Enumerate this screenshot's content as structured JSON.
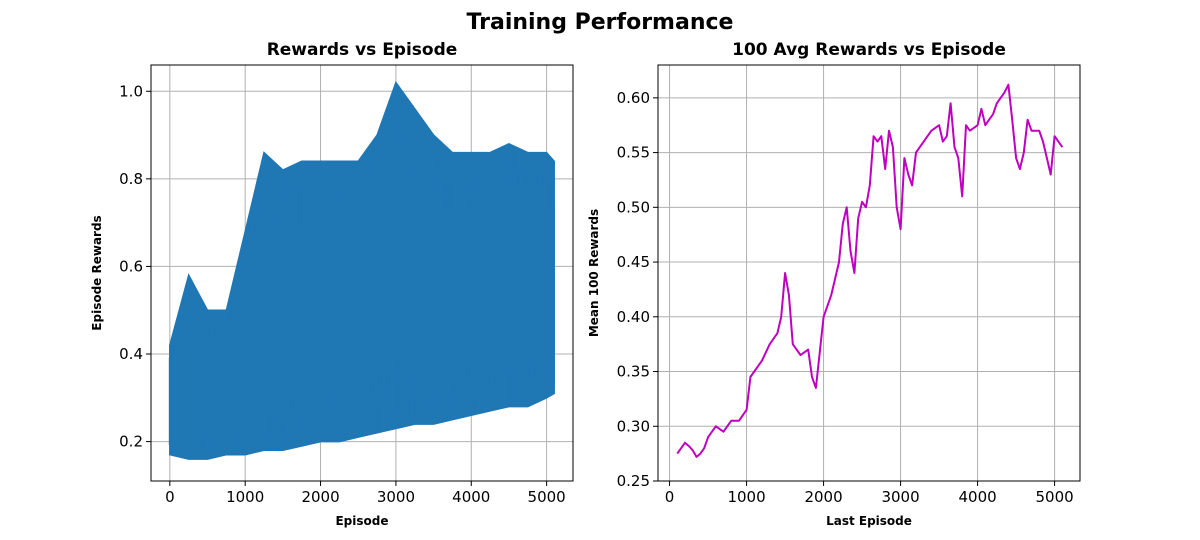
{
  "suptitle": "Training Performance",
  "chart_data": [
    {
      "type": "line",
      "title": "Rewards vs Episode",
      "xlabel": "Episode",
      "ylabel": "Episode Rewards",
      "xlim": [
        -250,
        5350
      ],
      "ylim": [
        0.11,
        1.06
      ],
      "xticks": [
        0,
        1000,
        2000,
        3000,
        4000,
        5000
      ],
      "yticks": [
        0.2,
        0.4,
        0.6,
        0.8,
        1.0
      ],
      "xtick_labels": [
        "0",
        "1000",
        "2000",
        "3000",
        "4000",
        "5000"
      ],
      "ytick_labels": [
        "0.2",
        "0.4",
        "0.6",
        "0.8",
        "1.0"
      ],
      "grid": true,
      "color": "#1f77b4",
      "series": [
        {
          "x": [
            0,
            250,
            500,
            750,
            1000,
            1250,
            1500,
            1750,
            2000,
            2250,
            2500,
            2750,
            3000,
            3250,
            3500,
            3750,
            4000,
            4250,
            4500,
            4750,
            5000,
            5100
          ],
          "low": [
            0.17,
            0.16,
            0.16,
            0.17,
            0.17,
            0.18,
            0.18,
            0.19,
            0.2,
            0.2,
            0.21,
            0.22,
            0.23,
            0.24,
            0.24,
            0.25,
            0.26,
            0.27,
            0.28,
            0.28,
            0.3,
            0.31
          ],
          "high": [
            0.42,
            0.58,
            0.5,
            0.5,
            0.68,
            0.86,
            0.82,
            0.84,
            0.84,
            0.84,
            0.84,
            0.9,
            1.02,
            0.96,
            0.9,
            0.86,
            0.86,
            0.86,
            0.88,
            0.86,
            0.86,
            0.84
          ]
        }
      ]
    },
    {
      "type": "line",
      "title": "100 Avg Rewards vs Episode",
      "xlabel": "Last Episode",
      "ylabel": "Mean 100 Rewards",
      "xlim": [
        -150,
        5330
      ],
      "ylim": [
        0.25,
        0.63
      ],
      "xticks": [
        0,
        1000,
        2000,
        3000,
        4000,
        5000
      ],
      "yticks": [
        0.25,
        0.3,
        0.35,
        0.4,
        0.45,
        0.5,
        0.55,
        0.6
      ],
      "xtick_labels": [
        "0",
        "1000",
        "2000",
        "3000",
        "4000",
        "5000"
      ],
      "ytick_labels": [
        "0.25",
        "0.30",
        "0.35",
        "0.40",
        "0.45",
        "0.50",
        "0.55",
        "0.60"
      ],
      "grid": true,
      "color": "#bf00bf",
      "series": [
        {
          "x": [
            100,
            150,
            200,
            250,
            300,
            350,
            400,
            450,
            500,
            600,
            700,
            800,
            900,
            1000,
            1050,
            1100,
            1200,
            1300,
            1400,
            1450,
            1500,
            1550,
            1600,
            1700,
            1800,
            1850,
            1900,
            2000,
            2100,
            2200,
            2250,
            2300,
            2350,
            2400,
            2450,
            2500,
            2550,
            2600,
            2650,
            2700,
            2750,
            2800,
            2850,
            2900,
            2950,
            3000,
            3050,
            3100,
            3150,
            3200,
            3300,
            3400,
            3500,
            3550,
            3600,
            3650,
            3700,
            3750,
            3800,
            3850,
            3900,
            4000,
            4050,
            4100,
            4150,
            4200,
            4250,
            4300,
            4350,
            4400,
            4450,
            4500,
            4550,
            4600,
            4650,
            4700,
            4800,
            4850,
            4900,
            4950,
            5000,
            5050,
            5100
          ],
          "y": [
            0.275,
            0.28,
            0.285,
            0.282,
            0.278,
            0.272,
            0.275,
            0.28,
            0.29,
            0.3,
            0.295,
            0.305,
            0.305,
            0.315,
            0.345,
            0.35,
            0.36,
            0.375,
            0.385,
            0.4,
            0.44,
            0.42,
            0.375,
            0.365,
            0.37,
            0.345,
            0.335,
            0.4,
            0.42,
            0.45,
            0.485,
            0.5,
            0.46,
            0.44,
            0.49,
            0.505,
            0.5,
            0.52,
            0.565,
            0.56,
            0.565,
            0.535,
            0.57,
            0.555,
            0.5,
            0.48,
            0.545,
            0.53,
            0.52,
            0.55,
            0.56,
            0.57,
            0.575,
            0.56,
            0.565,
            0.595,
            0.555,
            0.545,
            0.51,
            0.575,
            0.57,
            0.575,
            0.59,
            0.575,
            0.58,
            0.585,
            0.595,
            0.6,
            0.605,
            0.612,
            0.58,
            0.545,
            0.535,
            0.55,
            0.58,
            0.57,
            0.57,
            0.56,
            0.545,
            0.53,
            0.565,
            0.56,
            0.555
          ]
        }
      ]
    }
  ]
}
